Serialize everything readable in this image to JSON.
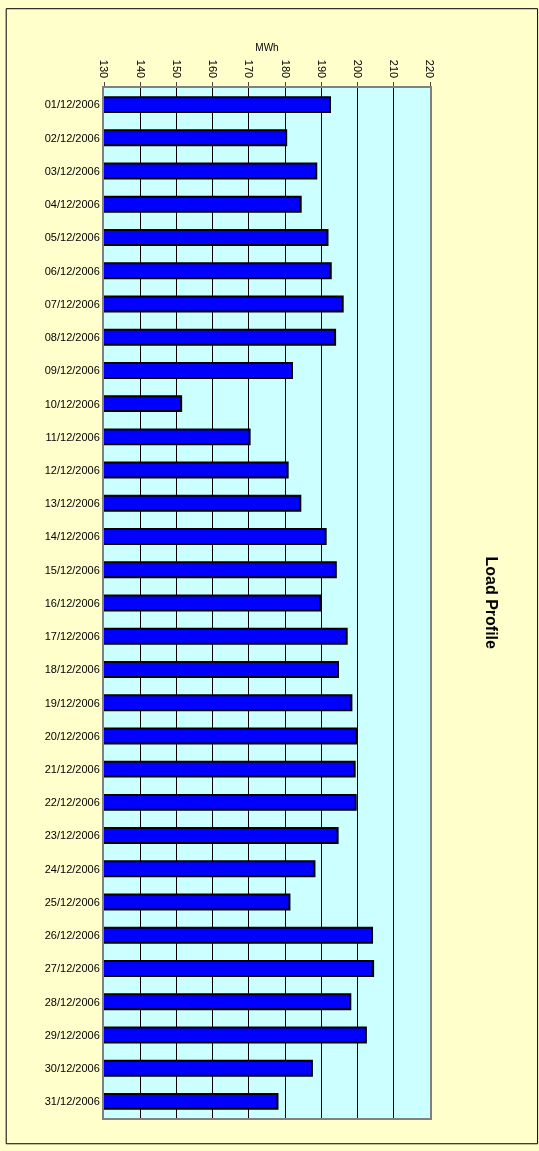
{
  "chart_data": {
    "type": "bar",
    "orientation": "horizontal",
    "title": "Load Profile",
    "xlabel": "MWh",
    "categories": [
      "01/12/2006",
      "02/12/2006",
      "03/12/2006",
      "04/12/2006",
      "05/12/2006",
      "06/12/2006",
      "07/12/2006",
      "08/12/2006",
      "09/12/2006",
      "10/12/2006",
      "11/12/2006",
      "12/12/2006",
      "13/12/2006",
      "14/12/2006",
      "15/12/2006",
      "16/12/2006",
      "17/12/2006",
      "18/12/2006",
      "19/12/2006",
      "20/12/2006",
      "21/12/2006",
      "22/12/2006",
      "23/12/2006",
      "24/12/2006",
      "25/12/2006",
      "26/12/2006",
      "27/12/2006",
      "28/12/2006",
      "29/12/2006",
      "30/12/2006",
      "31/12/2006"
    ],
    "values": [
      192.4,
      180.3,
      188.6,
      184.3,
      191.7,
      192.6,
      195.9,
      193.8,
      181.9,
      151.3,
      170.2,
      180.7,
      184.2,
      191.2,
      194.0,
      189.7,
      197.0,
      194.6,
      198.3,
      199.8,
      199.2,
      199.5,
      194.5,
      188.1,
      181.2,
      204.0,
      204.3,
      198.0,
      202.3,
      187.4,
      177.9
    ],
    "color": "#0000ff",
    "xlim": [
      130,
      220
    ],
    "xticks": [
      130,
      140,
      150,
      160,
      170,
      180,
      190,
      200,
      210,
      220
    ],
    "grid": "x",
    "legend": false
  }
}
